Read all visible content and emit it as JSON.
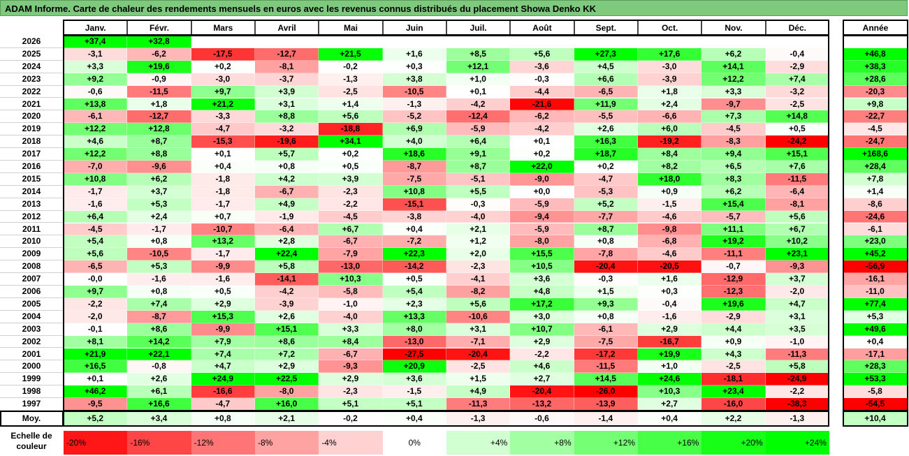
{
  "title": "ADAM Informe. Carte de chaleur des rendements mensuels en euros avec les revenus connus distribués du placement Showa Denko KK",
  "chart_data": {
    "type": "heatmap",
    "months": [
      "Janv.",
      "Févr.",
      "Mars",
      "Avril",
      "Mai",
      "Juin",
      "Juil.",
      "Août",
      "Sept.",
      "Oct.",
      "Nov.",
      "Déc."
    ],
    "year_header": "Année",
    "years": [
      "2026",
      "2025",
      "2024",
      "2023",
      "2022",
      "2021",
      "2020",
      "2019",
      "2018",
      "2017",
      "2016",
      "2015",
      "2014",
      "2013",
      "2012",
      "2011",
      "2010",
      "2009",
      "2008",
      "2007",
      "2006",
      "2005",
      "2004",
      "2003",
      "2002",
      "2001",
      "2000",
      "1999",
      "1998",
      "1997"
    ],
    "values": [
      [
        "+37,4",
        "+32,8",
        "",
        "",
        "",
        "",
        "",
        "",
        "",
        "",
        "",
        ""
      ],
      [
        "-3,1",
        "-6,2",
        "-17,5",
        "-12,7",
        "+21,5",
        "+1,6",
        "+8,5",
        "+5,6",
        "+27,3",
        "+17,6",
        "+6,2",
        "-0,4"
      ],
      [
        "+3,3",
        "+19,6",
        "+0,2",
        "-8,1",
        "-0,2",
        "+0,3",
        "+12,1",
        "-3,6",
        "+4,5",
        "-3,0",
        "+14,1",
        "-2,9"
      ],
      [
        "+9,2",
        "-0,9",
        "-3,0",
        "-3,7",
        "-1,3",
        "+3,8",
        "+1,0",
        "-0,3",
        "+6,6",
        "-3,9",
        "+12,2",
        "+7,4"
      ],
      [
        "-0,6",
        "-11,5",
        "+9,7",
        "+3,9",
        "-2,5",
        "-10,5",
        "+0,1",
        "-4,4",
        "-6,5",
        "+1,8",
        "+3,3",
        "-3,2"
      ],
      [
        "+13,8",
        "+1,8",
        "+21,2",
        "+3,1",
        "+1,4",
        "-1,3",
        "-4,2",
        "-21,6",
        "+11,9",
        "+2,4",
        "-9,7",
        "-2,5"
      ],
      [
        "-6,1",
        "-12,7",
        "-3,3",
        "+8,8",
        "+5,6",
        "-5,2",
        "-12,4",
        "-6,2",
        "-5,5",
        "-6,6",
        "+7,3",
        "+14,8"
      ],
      [
        "+12,2",
        "+12,8",
        "-4,7",
        "-3,2",
        "-18,8",
        "+6,9",
        "-5,9",
        "-4,2",
        "+2,6",
        "+6,0",
        "-4,5",
        "+0,5"
      ],
      [
        "+4,6",
        "+8,7",
        "-15,3",
        "-19,6",
        "+34,1",
        "+4,0",
        "+6,4",
        "+0,1",
        "+16,3",
        "-19,2",
        "-8,3",
        "-24,2"
      ],
      [
        "+12,2",
        "+8,8",
        "+0,1",
        "+5,7",
        "+0,2",
        "+18,6",
        "+9,1",
        "+0,2",
        "+18,7",
        "+8,4",
        "+9,4",
        "+15,1"
      ],
      [
        "-7,0",
        "-9,6",
        "+0,4",
        "+0,8",
        "+0,5",
        "-8,7",
        "+8,7",
        "+22,0",
        "+0,2",
        "+8,2",
        "+6,5",
        "+7,6"
      ],
      [
        "+10,8",
        "+6,2",
        "-1,8",
        "+4,2",
        "+3,9",
        "-7,5",
        "-5,1",
        "-9,0",
        "-4,7",
        "+18,0",
        "+8,3",
        "-11,5"
      ],
      [
        "-1,7",
        "+3,7",
        "-1,8",
        "-6,7",
        "-2,3",
        "+10,8",
        "+5,5",
        "+0,0",
        "-5,3",
        "+0,9",
        "+6,2",
        "-6,4"
      ],
      [
        "-1,6",
        "+5,3",
        "-1,7",
        "+4,9",
        "-2,2",
        "-15,1",
        "-0,3",
        "-5,9",
        "+5,2",
        "-1,5",
        "+15,4",
        "-8,1"
      ],
      [
        "+6,4",
        "+2,4",
        "+0,7",
        "-1,9",
        "-4,5",
        "-3,8",
        "-4,0",
        "-9,4",
        "-7,7",
        "-4,6",
        "-5,7",
        "+5,6"
      ],
      [
        "-4,5",
        "-1,7",
        "-10,7",
        "-6,4",
        "+6,7",
        "+0,4",
        "+2,1",
        "-5,9",
        "+8,7",
        "-9,8",
        "+11,1",
        "+6,7"
      ],
      [
        "+5,4",
        "+0,8",
        "+13,2",
        "+2,8",
        "-6,7",
        "-7,2",
        "+1,2",
        "-8,0",
        "+0,8",
        "-6,8",
        "+19,2",
        "+10,2"
      ],
      [
        "+5,6",
        "-10,5",
        "-1,7",
        "+22,4",
        "-7,9",
        "+22,3",
        "+2,0",
        "+15,5",
        "-7,8",
        "-4,6",
        "-11,1",
        "+23,1"
      ],
      [
        "-6,5",
        "+5,3",
        "-9,9",
        "+5,8",
        "-13,0",
        "-14,2",
        "-2,3",
        "+10,5",
        "-20,4",
        "-20,5",
        "-0,7",
        "-9,3"
      ],
      [
        "-0,0",
        "-1,6",
        "-1,6",
        "-14,1",
        "+10,3",
        "+0,5",
        "-4,1",
        "+3,6",
        "-0,3",
        "+1,6",
        "-12,9",
        "+3,7"
      ],
      [
        "+9,7",
        "+0,8",
        "+0,5",
        "-4,2",
        "-5,8",
        "+5,4",
        "-8,2",
        "+4,8",
        "+1,5",
        "+0,3",
        "-12,3",
        "-2,0"
      ],
      [
        "-2,2",
        "+7,4",
        "+2,9",
        "-3,9",
        "-1,0",
        "+2,3",
        "+5,6",
        "+17,2",
        "+9,3",
        "-0,4",
        "+19,6",
        "+4,7"
      ],
      [
        "-2,0",
        "-8,7",
        "+15,3",
        "+2,6",
        "-4,0",
        "+13,3",
        "-10,6",
        "+3,0",
        "+0,8",
        "-1,6",
        "-2,9",
        "+3,1"
      ],
      [
        "-0,1",
        "+8,6",
        "-9,9",
        "+15,1",
        "+3,3",
        "+8,0",
        "+3,1",
        "+10,7",
        "-6,1",
        "+2,9",
        "+4,4",
        "+3,5"
      ],
      [
        "+8,1",
        "+14,2",
        "+7,9",
        "+8,6",
        "+8,4",
        "-13,0",
        "-7,1",
        "+2,9",
        "-7,5",
        "-16,7",
        "+0,9",
        "-1,0"
      ],
      [
        "+21,9",
        "+22,1",
        "+7,4",
        "+7,2",
        "-6,7",
        "-27,5",
        "-20,4",
        "-2,2",
        "-17,2",
        "+19,9",
        "+4,3",
        "-11,3"
      ],
      [
        "+16,5",
        "-0,8",
        "+4,7",
        "+2,9",
        "-9,3",
        "+20,9",
        "-2,5",
        "+4,6",
        "-11,5",
        "+1,0",
        "-2,5",
        "+5,8"
      ],
      [
        "+0,1",
        "+2,6",
        "+24,9",
        "+22,5",
        "+2,9",
        "+3,6",
        "+1,5",
        "+2,7",
        "+14,5",
        "+24,6",
        "-18,1",
        "-24,9"
      ],
      [
        "+46,2",
        "+6,1",
        "-16,6",
        "-8,0",
        "-2,3",
        "-1,5",
        "+4,9",
        "-20,4",
        "-26,0",
        "+10,3",
        "+23,4",
        "-2,2"
      ],
      [
        "-9,5",
        "+16,6",
        "-4,7",
        "+16,0",
        "+5,1",
        "+5,1",
        "-11,3",
        "-13,2",
        "-13,9",
        "+2,7",
        "-16,0",
        "-38,3"
      ]
    ],
    "annual": [
      "",
      "+46,8",
      "+38,3",
      "+28,6",
      "-20,3",
      "+9,8",
      "-22,7",
      "-4,5",
      "-24,7",
      "+168,6",
      "+28,4",
      "+7,8",
      "+1,4",
      "-8,6",
      "-24,6",
      "-6,1",
      "+23,0",
      "+45,2",
      "-56,9",
      "-16,1",
      "-11,0",
      "+77,4",
      "+5,3",
      "+49,6",
      "+0,4",
      "-17,1",
      "+28,3",
      "+53,3",
      "-5,8",
      "-54,5"
    ],
    "avg_label": "Moy.",
    "avg_values": [
      "+5,2",
      "+3,4",
      "+0,8",
      "+2,1",
      "-0,2",
      "+0,4",
      "-1,3",
      "-0,6",
      "-1,4",
      "+0,4",
      "+2,2",
      "-1,3"
    ],
    "avg_annual": "+10,4",
    "scale_label": "Echelle de couleur",
    "scale": [
      {
        "label": "-20%",
        "value": -20
      },
      {
        "label": "-16%",
        "value": -16
      },
      {
        "label": "-12%",
        "value": -12
      },
      {
        "label": "-8%",
        "value": -8
      },
      {
        "label": "-4%",
        "value": -4
      },
      {
        "label": "0%",
        "value": 0
      },
      {
        "label": "+4%",
        "value": 4
      },
      {
        "label": "+8%",
        "value": 8
      },
      {
        "label": "+12%",
        "value": 12
      },
      {
        "label": "+16%",
        "value": 16
      },
      {
        "label": "+20%",
        "value": 20
      },
      {
        "label": "+24%",
        "value": 24
      }
    ],
    "colors": {
      "strong_negative": "#ff0000",
      "strong_positive": "#00ff00",
      "neutral": "#ffffff",
      "title_bar": "#7fc97f"
    }
  }
}
